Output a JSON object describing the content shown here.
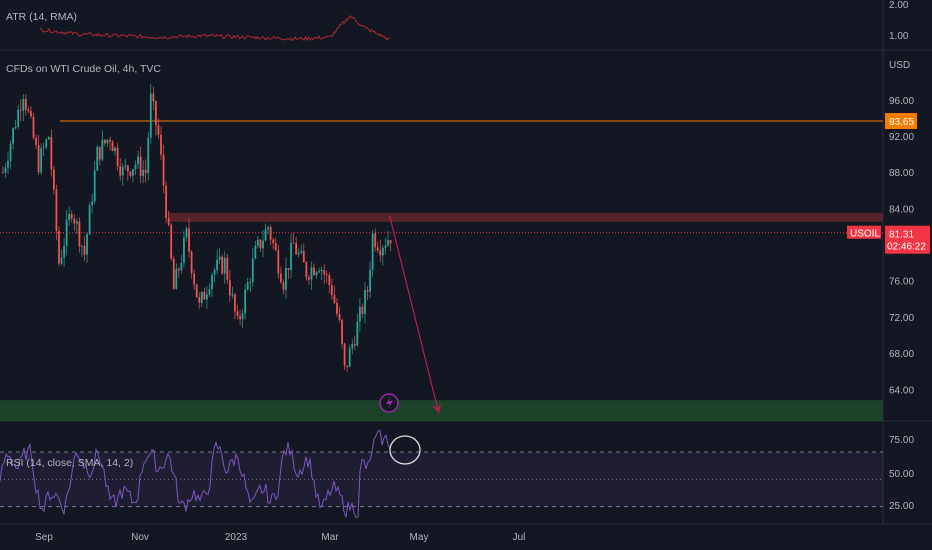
{
  "chart_data": [
    {
      "type": "line",
      "title": "ATR (14, RMA)",
      "ylim": [
        0.7,
        2.2
      ],
      "yticks": [
        "2.00",
        "1.00"
      ],
      "color": "#b22833"
    },
    {
      "type": "candlestick",
      "title": "CFDs on WTI Crude Oil, 4h, TVC",
      "ylabel": "USD",
      "ylim": [
        60.5,
        101.5
      ],
      "yticks": [
        "96.00",
        "92.00",
        "88.00",
        "84.00",
        "80.00",
        "76.00",
        "72.00",
        "68.00",
        "64.00"
      ],
      "xlabels": [
        "Sep",
        "Nov",
        "2023",
        "Mar",
        "May",
        "Jul"
      ],
      "close_path": [
        [
          88,
          0
        ],
        [
          97,
          8
        ],
        [
          89,
          14
        ],
        [
          92,
          18
        ],
        [
          78,
          22
        ],
        [
          84,
          27
        ],
        [
          79,
          32
        ],
        [
          90,
          37
        ],
        [
          92,
          42
        ],
        [
          88,
          47
        ],
        [
          89,
          52
        ],
        [
          88,
          56
        ],
        [
          96,
          58
        ],
        [
          92,
          61
        ],
        [
          84,
          64
        ],
        [
          75,
          67
        ],
        [
          81,
          72
        ],
        [
          73,
          77
        ],
        [
          77,
          82
        ],
        [
          78,
          87
        ],
        [
          71,
          92
        ],
        [
          79,
          99
        ],
        [
          82,
          104
        ],
        [
          76,
          110
        ],
        [
          80,
          114
        ],
        [
          77,
          119
        ],
        [
          78,
          124
        ],
        [
          75,
          129
        ],
        [
          71,
          132
        ],
        [
          66,
          134
        ],
        [
          69,
          137
        ],
        [
          72,
          140
        ],
        [
          75,
          143
        ],
        [
          81,
          145
        ],
        [
          80,
          148
        ],
        [
          81,
          152
        ]
      ],
      "levels": [
        {
          "price": 93.65,
          "label": "93.65",
          "color": "#f57c00"
        }
      ],
      "last_price": {
        "symbol": "USOIL",
        "price": "81.31",
        "countdown": "02:46:22",
        "value": 81.31,
        "color": "#f23645"
      },
      "resistance_zone": [
        82.5,
        83.5
      ],
      "support_zone": [
        60.5,
        62.8
      ],
      "projection_arrow": {
        "from": [
          83.2,
          152
        ],
        "to": [
          61.5,
          170
        ]
      }
    },
    {
      "type": "line",
      "title": "RSI (14, close, SMA, 14, 2)",
      "ylim": [
        18,
        92
      ],
      "band": [
        30,
        70
      ],
      "midline": 50,
      "yticks": [
        "75.00",
        "50.00",
        "25.00"
      ],
      "color": "#7e57c2"
    }
  ]
}
